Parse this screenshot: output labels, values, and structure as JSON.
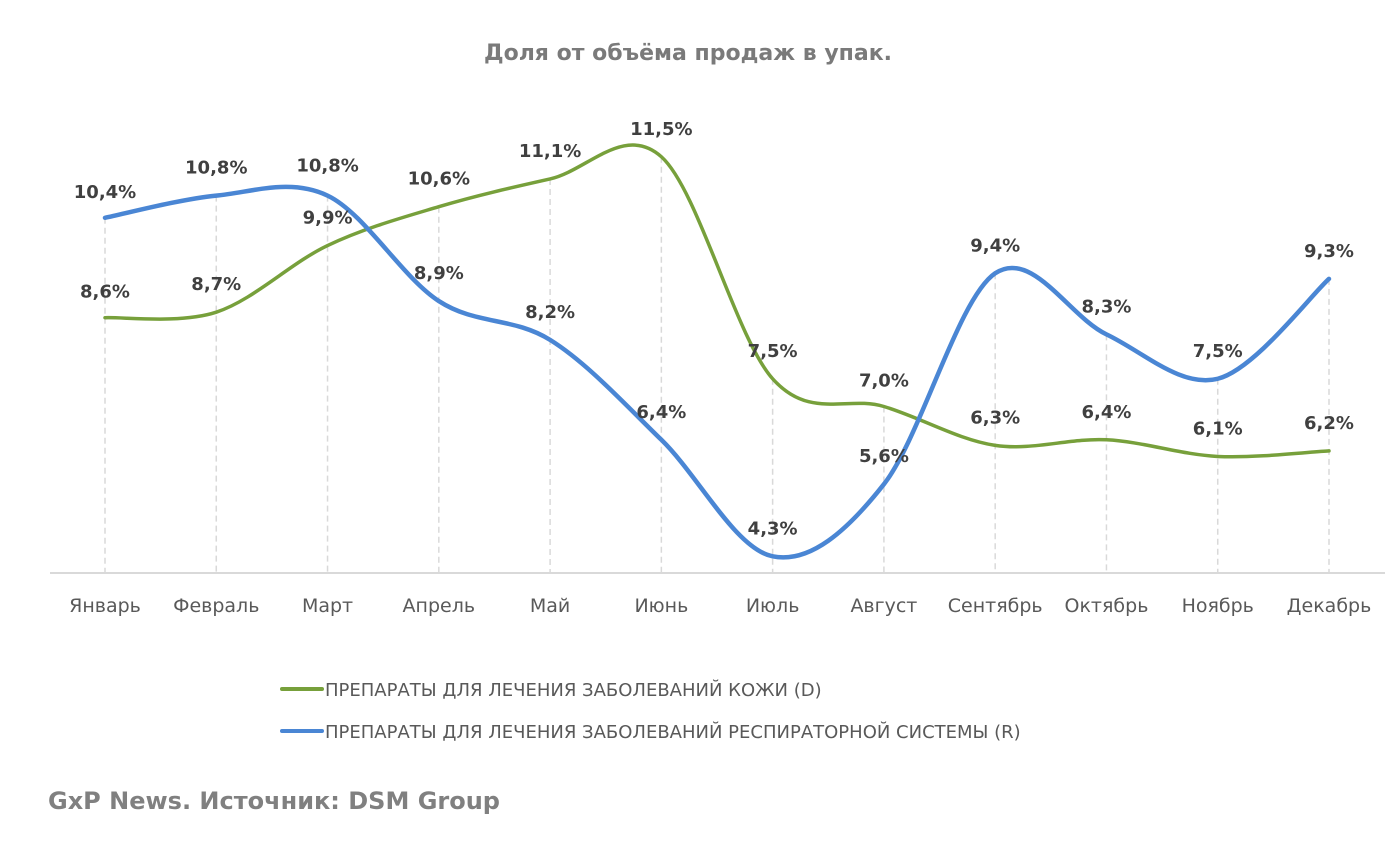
{
  "chart_data": {
    "type": "line",
    "title": "Доля от объёма продаж в упак.",
    "xlabel": "",
    "ylabel": "",
    "categories": [
      "Январь",
      "Февраль",
      "Март",
      "Апрель",
      "Май",
      "Июнь",
      "Июль",
      "Август",
      "Сентябрь",
      "Октябрь",
      "Ноябрь",
      "Декабрь"
    ],
    "series": [
      {
        "name": "ПРЕПАРАТЫ ДЛЯ ЛЕЧЕНИЯ ЗАБОЛЕВАНИЙ КОЖИ (D)",
        "color": "#77A03B",
        "values": [
          8.6,
          8.7,
          9.9,
          10.6,
          11.1,
          11.5,
          7.5,
          7.0,
          6.3,
          6.4,
          6.1,
          6.2
        ],
        "labels": [
          "8,6%",
          "8,7%",
          "9,9%",
          "10,6%",
          "11,1%",
          "11,5%",
          "7,5%",
          "7,0%",
          "6,3%",
          "6,4%",
          "6,1%",
          "6,2%"
        ]
      },
      {
        "name": "ПРЕПАРАТЫ ДЛЯ ЛЕЧЕНИЯ ЗАБОЛЕВАНИЙ РЕСПИРАТОРНОЙ СИСТЕМЫ (R)",
        "color": "#4A86D4",
        "values": [
          10.4,
          10.8,
          10.8,
          8.9,
          8.2,
          6.4,
          4.3,
          5.6,
          9.4,
          8.3,
          7.5,
          9.3
        ],
        "labels": [
          "10,4%",
          "10,8%",
          "10,8%",
          "8,9%",
          "8,2%",
          "6,4%",
          "4,3%",
          "5,6%",
          "9,4%",
          "8,3%",
          "7,5%",
          "9,3%"
        ]
      }
    ],
    "ylim": [
      4.0,
      12.0
    ],
    "y_axis_visible": false,
    "grid": "vertical dashed drop lines",
    "smooth": true,
    "legend_position": "bottom",
    "value_unit": "%"
  },
  "footer": {
    "source": "GxP News. Источник: DSM Group"
  }
}
